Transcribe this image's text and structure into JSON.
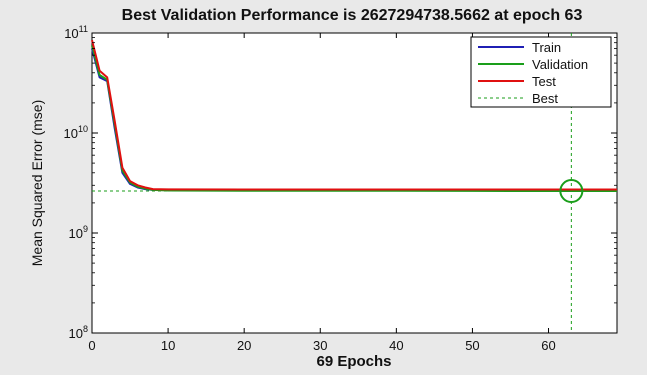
{
  "chart_data": {
    "type": "line",
    "title": "Best Validation Performance is 2627294738.5662 at epoch 63",
    "xlabel": "69 Epochs",
    "ylabel": "Mean Squared Error  (mse)",
    "xlim": [
      0,
      69
    ],
    "ylim": [
      100000000,
      100000000000
    ],
    "yscale": "log",
    "grid": false,
    "legend_position": "top-right",
    "x_ticks": [
      0,
      10,
      20,
      30,
      40,
      50,
      60
    ],
    "y_ticks": [
      {
        "value": 100000000,
        "label_base": "10",
        "label_exp": "8"
      },
      {
        "value": 1000000000,
        "label_base": "10",
        "label_exp": "9"
      },
      {
        "value": 10000000000,
        "label_base": "10",
        "label_exp": "10"
      },
      {
        "value": 100000000000,
        "label_base": "10",
        "label_exp": "11"
      }
    ],
    "series": [
      {
        "name": "Train",
        "color": "#1f1fb4",
        "x": [
          0,
          1,
          2,
          3,
          4,
          5,
          6,
          7,
          8,
          10,
          20,
          30,
          40,
          50,
          60,
          69
        ],
        "y": [
          70000000000,
          36000000000,
          33000000000,
          11000000000,
          4000000000,
          3100000000,
          2850000000,
          2750000000,
          2700000000,
          2690000000,
          2680000000,
          2680000000,
          2680000000,
          2670000000,
          2670000000,
          2670000000
        ]
      },
      {
        "name": "Validation",
        "color": "#1a9e1a",
        "x": [
          0,
          1,
          2,
          3,
          4,
          5,
          6,
          7,
          8,
          10,
          20,
          30,
          40,
          50,
          60,
          63,
          69
        ],
        "y": [
          75000000000,
          38000000000,
          34000000000,
          12000000000,
          4200000000,
          3200000000,
          2900000000,
          2780000000,
          2700000000,
          2660000000,
          2650000000,
          2645000000,
          2640000000,
          2635000000,
          2630000000,
          2627294738.5662,
          2628000000
        ]
      },
      {
        "name": "Test",
        "color": "#e01010",
        "x": [
          0,
          1,
          2,
          3,
          4,
          5,
          6,
          7,
          8,
          10,
          20,
          30,
          40,
          50,
          60,
          69
        ],
        "y": [
          85000000000,
          42000000000,
          36000000000,
          13000000000,
          4500000000,
          3300000000,
          3000000000,
          2850000000,
          2750000000,
          2730000000,
          2720000000,
          2720000000,
          2720000000,
          2720000000,
          2720000000,
          2720000000
        ]
      }
    ],
    "best": {
      "name": "Best",
      "epoch": 63,
      "value": 2627294738.5662,
      "color": "#1a9e1a"
    }
  }
}
